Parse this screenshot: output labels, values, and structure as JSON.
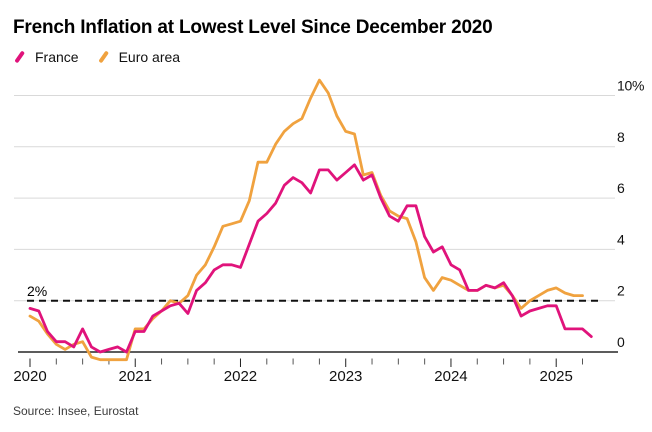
{
  "header": {
    "title": "French Inflation at Lowest Level Since December 2020"
  },
  "legend": {
    "items": [
      {
        "label": "France",
        "color": "#e0137b"
      },
      {
        "label": "Euro area",
        "color": "#f0a23f"
      }
    ]
  },
  "chart_data": {
    "type": "line",
    "title": "French Inflation at Lowest Level Since December 2020",
    "x_start": "2020-01",
    "frequency": "monthly",
    "x_tick_years": [
      "2020",
      "2021",
      "2022",
      "2023",
      "2024",
      "2025"
    ],
    "y_ticks": [
      0,
      2,
      4,
      6,
      8,
      10
    ],
    "y_tick_labels": [
      "0",
      "2",
      "4",
      "6",
      "8",
      "10%"
    ],
    "ylim": [
      -0.6,
      11
    ],
    "grid": "horizontal-gray",
    "legend_position": "top-left",
    "annotation": {
      "label": "2%",
      "value": 2,
      "style": "black-dashed-horizontal-line"
    },
    "series": [
      {
        "name": "France",
        "color": "#e0137b",
        "last_point": "2025-05",
        "values": [
          1.7,
          1.6,
          0.8,
          0.4,
          0.4,
          0.2,
          0.9,
          0.2,
          0.0,
          0.1,
          0.2,
          0.0,
          0.8,
          0.8,
          1.4,
          1.6,
          1.8,
          1.9,
          1.5,
          2.4,
          2.7,
          3.2,
          3.4,
          3.4,
          3.3,
          4.2,
          5.1,
          5.4,
          5.8,
          6.5,
          6.8,
          6.6,
          6.2,
          7.1,
          7.1,
          6.7,
          7.0,
          7.3,
          6.7,
          6.9,
          6.0,
          5.3,
          5.1,
          5.7,
          5.7,
          4.5,
          3.9,
          4.1,
          3.4,
          3.2,
          2.4,
          2.4,
          2.6,
          2.5,
          2.7,
          2.2,
          1.4,
          1.6,
          1.7,
          1.8,
          1.8,
          0.9,
          0.9,
          0.9,
          0.6
        ]
      },
      {
        "name": "Euro area",
        "color": "#f0a23f",
        "last_point": "2025-04",
        "values": [
          1.4,
          1.2,
          0.7,
          0.3,
          0.1,
          0.3,
          0.4,
          -0.2,
          -0.3,
          -0.3,
          -0.3,
          -0.3,
          0.9,
          0.9,
          1.3,
          1.6,
          2.0,
          1.9,
          2.2,
          3.0,
          3.4,
          4.1,
          4.9,
          5.0,
          5.1,
          5.9,
          7.4,
          7.4,
          8.1,
          8.6,
          8.9,
          9.1,
          9.9,
          10.6,
          10.1,
          9.2,
          8.6,
          8.5,
          6.9,
          7.0,
          6.1,
          5.5,
          5.3,
          5.2,
          4.3,
          2.9,
          2.4,
          2.9,
          2.8,
          2.6,
          2.4,
          2.4,
          2.6,
          2.5,
          2.6,
          2.2,
          1.7,
          2.0,
          2.2,
          2.4,
          2.5,
          2.3,
          2.2,
          2.2
        ]
      }
    ]
  },
  "footer": {
    "source": "Source: Insee, Eurostat"
  }
}
